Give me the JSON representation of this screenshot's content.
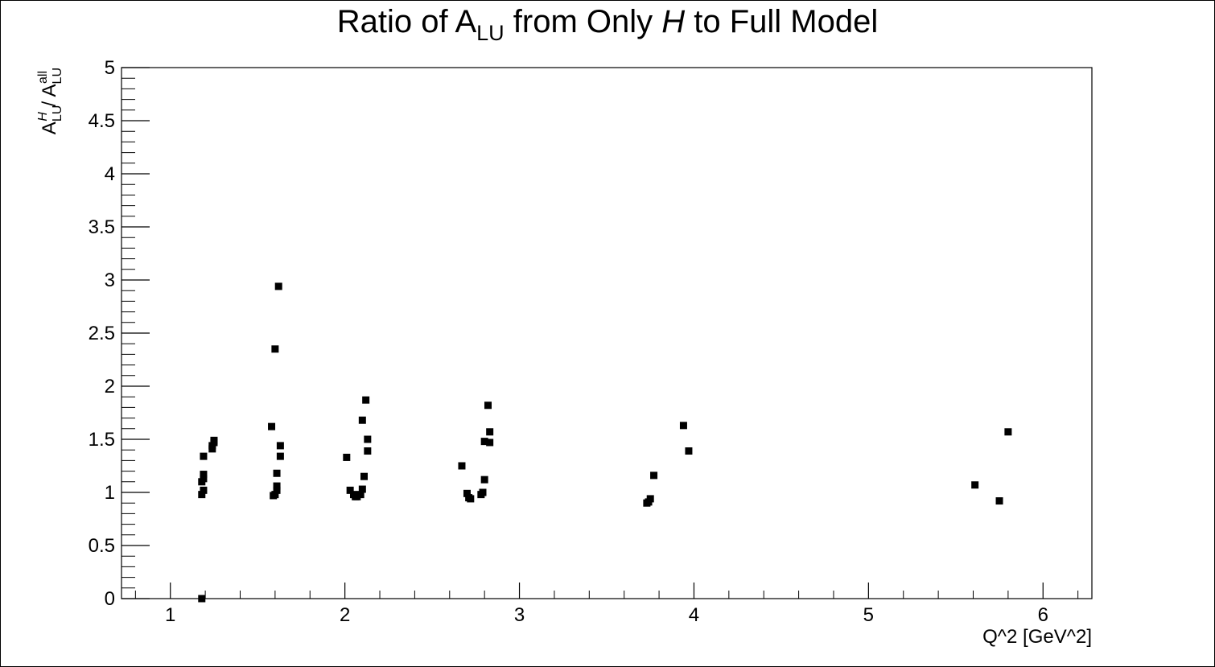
{
  "chart_data": {
    "type": "scatter",
    "title": {
      "prefix": "Ratio of A",
      "prefix_sub": "LU",
      "middle": " from Only ",
      "italic": "H",
      "suffix": " to Full Model"
    },
    "xlabel": "Q^2 [GeV^2]",
    "ylabel": {
      "num_base": "A",
      "num_sub": "LU",
      "num_sup": "H",
      "sep": " / ",
      "den_base": "A",
      "den_sub": "LU",
      "den_sup": "all"
    },
    "xlim": [
      0.72,
      6.28
    ],
    "ylim": [
      0,
      5
    ],
    "x_ticks": [
      "1",
      "2",
      "3",
      "4",
      "5",
      "6"
    ],
    "y_ticks": [
      "0",
      "0.5",
      "1",
      "1.5",
      "2",
      "2.5",
      "3",
      "3.5",
      "4",
      "4.5",
      "5"
    ],
    "grid": false,
    "marker": "square",
    "color": "#000000",
    "points": [
      [
        1.18,
        0.0
      ],
      [
        1.18,
        0.98
      ],
      [
        1.19,
        1.02
      ],
      [
        1.18,
        1.1
      ],
      [
        1.19,
        1.13
      ],
      [
        1.19,
        1.17
      ],
      [
        1.19,
        1.34
      ],
      [
        1.24,
        1.41
      ],
      [
        1.24,
        1.44
      ],
      [
        1.25,
        1.47
      ],
      [
        1.25,
        1.49
      ],
      [
        1.58,
        1.62
      ],
      [
        1.6,
        2.35
      ],
      [
        1.62,
        2.94
      ],
      [
        1.59,
        0.97
      ],
      [
        1.6,
        0.98
      ],
      [
        1.61,
        1.02
      ],
      [
        1.61,
        1.06
      ],
      [
        1.61,
        1.18
      ],
      [
        1.63,
        1.34
      ],
      [
        1.63,
        1.44
      ],
      [
        2.01,
        1.33
      ],
      [
        2.03,
        1.02
      ],
      [
        2.05,
        0.98
      ],
      [
        2.06,
        0.96
      ],
      [
        2.07,
        0.96
      ],
      [
        2.09,
        0.98
      ],
      [
        2.1,
        1.03
      ],
      [
        2.11,
        1.15
      ],
      [
        2.1,
        1.68
      ],
      [
        2.12,
        1.87
      ],
      [
        2.13,
        1.5
      ],
      [
        2.13,
        1.39
      ],
      [
        2.67,
        1.25
      ],
      [
        2.7,
        0.99
      ],
      [
        2.71,
        0.95
      ],
      [
        2.72,
        0.94
      ],
      [
        2.78,
        0.98
      ],
      [
        2.79,
        1.0
      ],
      [
        2.8,
        1.12
      ],
      [
        2.8,
        1.48
      ],
      [
        2.82,
        1.82
      ],
      [
        2.83,
        1.57
      ],
      [
        2.83,
        1.47
      ],
      [
        3.73,
        0.9
      ],
      [
        3.74,
        0.91
      ],
      [
        3.75,
        0.94
      ],
      [
        3.77,
        1.16
      ],
      [
        3.94,
        1.63
      ],
      [
        3.97,
        1.39
      ],
      [
        5.61,
        1.07
      ],
      [
        5.75,
        0.92
      ],
      [
        5.8,
        1.57
      ]
    ]
  }
}
